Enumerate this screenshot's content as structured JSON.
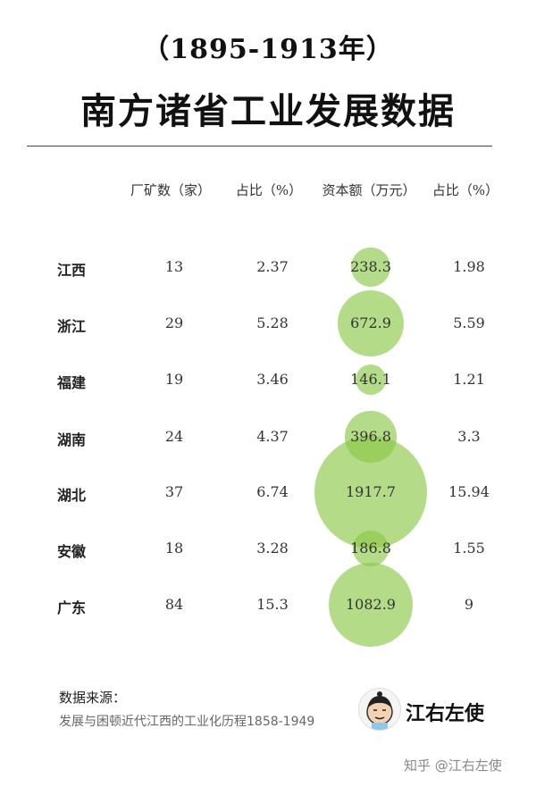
{
  "header": {
    "subtitle": "（1895-1913年）",
    "title": "南方诸省工业发展数据"
  },
  "chart_data": {
    "type": "table",
    "columns": [
      "厂矿数（家）",
      "占比（%）",
      "资本额（万元）",
      "占比（%）"
    ],
    "rows": [
      {
        "province": "江西",
        "factories": "13",
        "factory_share": "2.37",
        "capital": "238.3",
        "capital_share": "1.98"
      },
      {
        "province": "浙江",
        "factories": "29",
        "factory_share": "5.28",
        "capital": "672.9",
        "capital_share": "5.59"
      },
      {
        "province": "福建",
        "factories": "19",
        "factory_share": "3.46",
        "capital": "146.1",
        "capital_share": "1.21"
      },
      {
        "province": "湖南",
        "factories": "24",
        "factory_share": "4.37",
        "capital": "396.8",
        "capital_share": "3.3"
      },
      {
        "province": "湖北",
        "factories": "37",
        "factory_share": "6.74",
        "capital": "1917.7",
        "capital_share": "15.94"
      },
      {
        "province": "安徽",
        "factories": "18",
        "factory_share": "3.28",
        "capital": "186.8",
        "capital_share": "1.55"
      },
      {
        "province": "广东",
        "factories": "84",
        "factory_share": "15.3",
        "capital": "1082.9",
        "capital_share": "9"
      }
    ],
    "bubble_color": "#8cc846"
  },
  "footer": {
    "source_title": "数据来源：",
    "source_text": "发展与困顿近代江西的工业化历程1858-1949",
    "brand": "江右左使",
    "watermark": "知乎 @江右左使"
  }
}
